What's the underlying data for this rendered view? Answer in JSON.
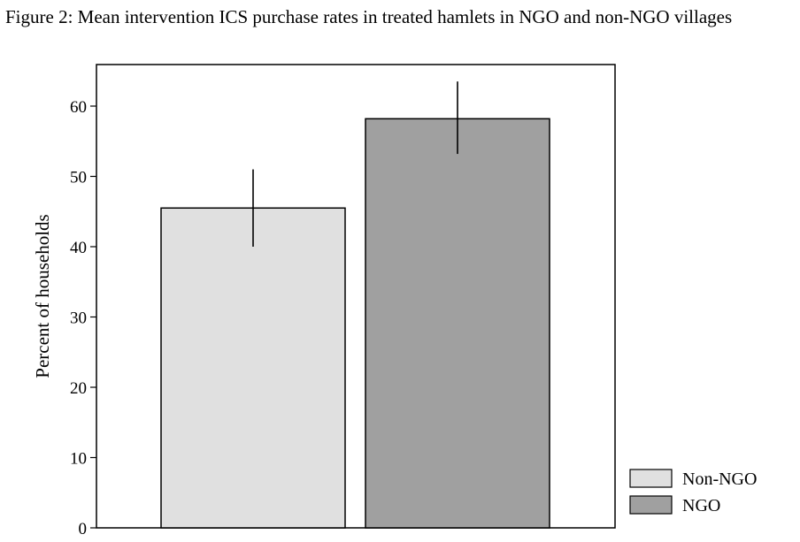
{
  "caption": "Figure 2: Mean intervention ICS purchase rates in treated hamlets in NGO and non-NGO villages",
  "chart_data": {
    "type": "bar",
    "title": "",
    "xlabel": "",
    "ylabel": "Percent of households",
    "ylim": [
      0,
      66
    ],
    "yticks": [
      0,
      10,
      20,
      30,
      40,
      50,
      60
    ],
    "grid": false,
    "legend_position": "bottom-right, outside plot",
    "series": [
      {
        "name": "Non-NGO",
        "value": 45.5,
        "error_low": 40.0,
        "error_high": 51.0,
        "color": "#e0e0e0"
      },
      {
        "name": "NGO",
        "value": 58.2,
        "error_low": 53.2,
        "error_high": 63.5,
        "color": "#a0a0a0"
      }
    ]
  }
}
